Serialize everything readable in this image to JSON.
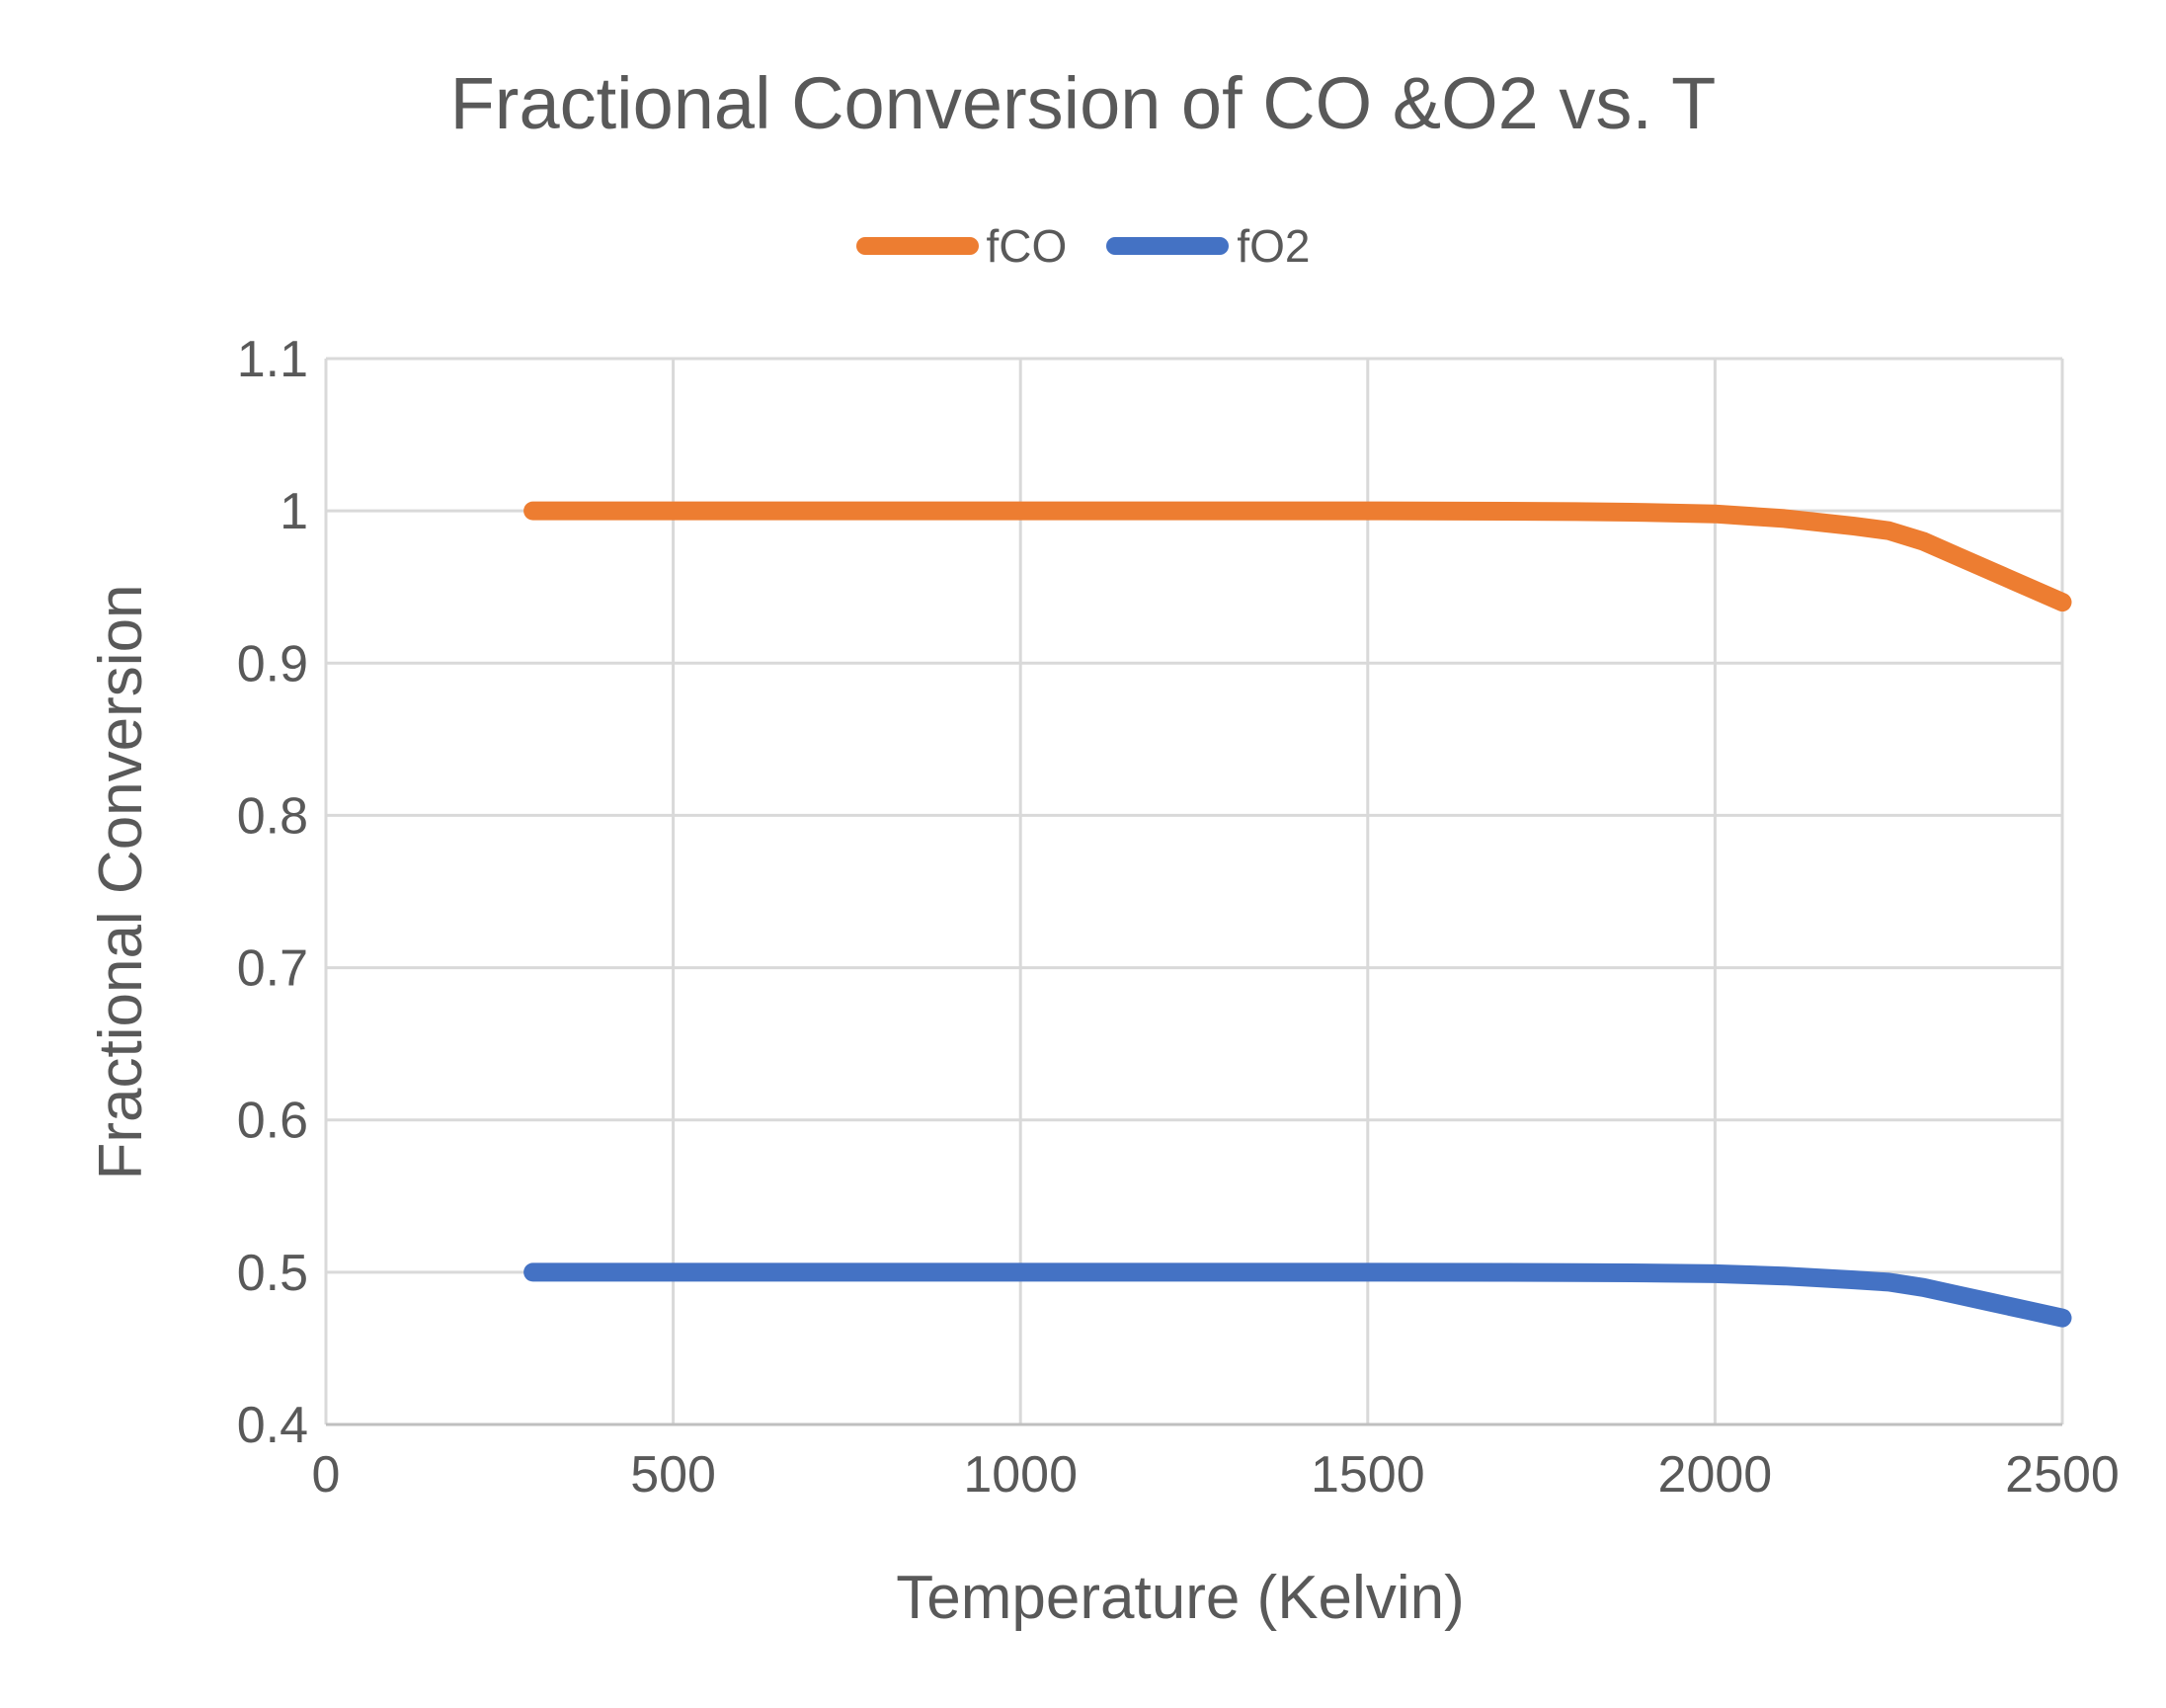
{
  "chart_data": {
    "type": "line",
    "title": "Fractional Conversion of CO &O2 vs. T",
    "xlabel": "Temperature (Kelvin)",
    "ylabel": "Fractional Conversion",
    "xlim": [
      0,
      2500
    ],
    "ylim": [
      0.4,
      1.1
    ],
    "x_ticks": [
      "0",
      "500",
      "1000",
      "1500",
      "2000",
      "2500"
    ],
    "y_ticks": [
      "0.4",
      "0.5",
      "0.6",
      "0.7",
      "0.8",
      "0.9",
      "1",
      "1.1"
    ],
    "grid": true,
    "legend_position": "top",
    "series": [
      {
        "name": "fCO",
        "color": "#ED7D31",
        "x": [
          298,
          500,
          1000,
          1500,
          1700,
          1800,
          1900,
          2000,
          2100,
          2200,
          2250,
          2300,
          2350,
          2400,
          2450,
          2500
        ],
        "y": [
          1.0,
          1.0,
          1.0,
          1.0,
          0.9998,
          0.9995,
          0.999,
          0.998,
          0.995,
          0.99,
          0.987,
          0.98,
          0.97,
          0.96,
          0.95,
          0.94
        ]
      },
      {
        "name": "fO2",
        "color": "#4472C4",
        "x": [
          298,
          500,
          1000,
          1500,
          1700,
          1800,
          1900,
          2000,
          2100,
          2200,
          2250,
          2300,
          2350,
          2400,
          2450,
          2500
        ],
        "y": [
          0.5,
          0.5,
          0.5,
          0.5,
          0.4999,
          0.4998,
          0.4995,
          0.499,
          0.4975,
          0.495,
          0.4935,
          0.49,
          0.485,
          0.48,
          0.475,
          0.47
        ]
      }
    ]
  }
}
